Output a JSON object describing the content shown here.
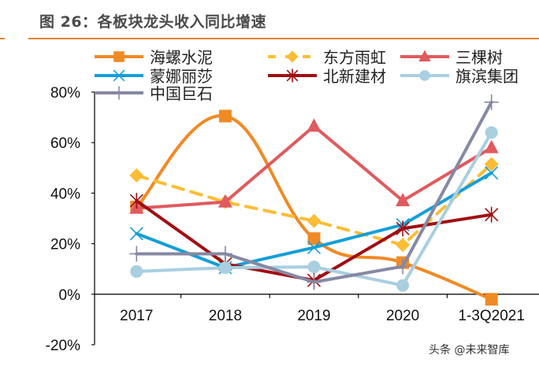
{
  "title": "图 26：各板块龙头收入同比增速",
  "watermark": "头条 @未来智库",
  "chart_data": {
    "type": "line",
    "title": "图 26：各板块龙头收入同比增速",
    "xlabel": "",
    "ylabel": "",
    "categories": [
      "2017",
      "2018",
      "2019",
      "2020",
      "1-3Q2021"
    ],
    "ylim": [
      -20,
      80
    ],
    "yticks": [
      -20,
      0,
      20,
      40,
      60,
      80
    ],
    "ytick_labels": [
      "-20%",
      "0%",
      "20%",
      "40%",
      "60%",
      "80%"
    ],
    "grid": false,
    "legend_position": "top",
    "series": [
      {
        "name": "海螺水泥",
        "color": "#f08a24",
        "marker": "square",
        "dash": false,
        "smooth": true,
        "values": [
          34.5,
          70.5,
          22,
          12.5,
          -2
        ]
      },
      {
        "name": "东方雨虹",
        "color": "#fbbd35",
        "marker": "diamond",
        "dash": true,
        "smooth": false,
        "values": [
          47,
          36.5,
          29,
          19.5,
          51.5
        ]
      },
      {
        "name": "三棵树",
        "color": "#e05a5f",
        "marker": "triangle",
        "dash": false,
        "smooth": false,
        "values": [
          34,
          36.5,
          66.5,
          37,
          58
        ]
      },
      {
        "name": "蒙娜丽莎",
        "color": "#169fd8",
        "marker": "x",
        "dash": false,
        "smooth": false,
        "values": [
          24,
          10.5,
          18.5,
          27.5,
          48
        ]
      },
      {
        "name": "北新建材",
        "color": "#a10e12",
        "marker": "star",
        "dash": false,
        "smooth": false,
        "values": [
          37,
          12,
          5.5,
          26,
          31.5
        ]
      },
      {
        "name": "旗滨集团",
        "color": "#a9cfe0",
        "marker": "circle",
        "dash": false,
        "smooth": false,
        "values": [
          9,
          10.5,
          10.8,
          3.5,
          64
        ]
      },
      {
        "name": "中国巨石",
        "color": "#8689a3",
        "marker": "plus",
        "dash": false,
        "smooth": false,
        "values": [
          16,
          16,
          4.8,
          11,
          76
        ]
      }
    ]
  }
}
